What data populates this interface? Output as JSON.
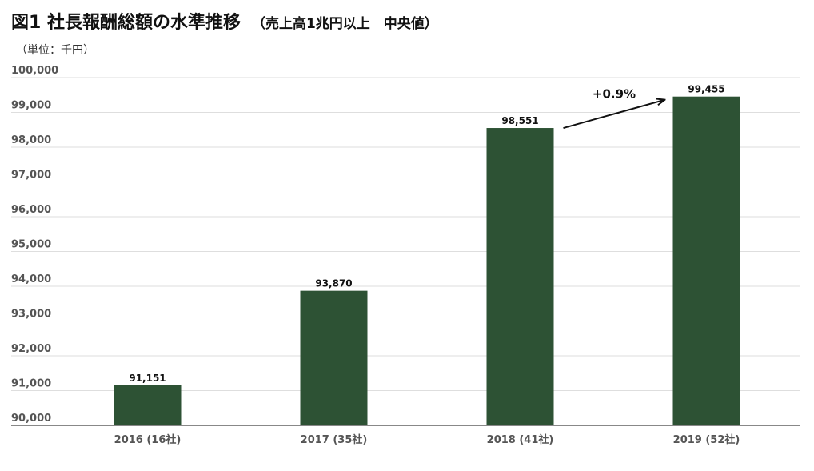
{
  "chart_data": {
    "type": "bar",
    "title": "図1 社長報酬総額の水準推移",
    "subtitle": "（売上高1兆円以上　中央値）",
    "unit_label": "（単位：千円）",
    "categories": [
      "2016 (16社)",
      "2017 (35社)",
      "2018 (41社)",
      "2019 (52社)"
    ],
    "values": [
      91151,
      93870,
      98551,
      99455
    ],
    "data_labels": [
      "91,151",
      "93,870",
      "98,551",
      "99,455"
    ],
    "ylim": [
      90000,
      100000
    ],
    "yticks": [
      90000,
      91000,
      92000,
      93000,
      94000,
      95000,
      96000,
      97000,
      98000,
      99000,
      100000
    ],
    "ytick_labels": [
      "90,000",
      "91,000",
      "92,000",
      "93,000",
      "94,000",
      "95,000",
      "96,000",
      "97,000",
      "98,000",
      "99,000",
      "100,000"
    ],
    "grid": true,
    "bar_color": "#2d5234",
    "annotation": {
      "text": "+0.9%",
      "from_category": "2018 (41社)",
      "to_category": "2019 (52社)"
    }
  }
}
